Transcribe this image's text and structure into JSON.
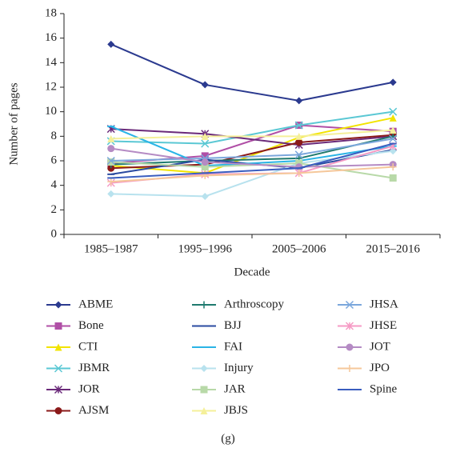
{
  "chart_data": {
    "type": "line",
    "caption": "(g)",
    "xlabel": "Decade",
    "ylabel": "Number of pages",
    "categories": [
      "1985–1987",
      "1995–1996",
      "2005–2006",
      "2015–2016"
    ],
    "ylim": [
      0,
      18
    ],
    "yticks": [
      0,
      2,
      4,
      6,
      8,
      10,
      12,
      14,
      16,
      18
    ],
    "series": [
      {
        "name": "ABME",
        "color": "#2b3a8f",
        "marker": "diamond",
        "values": [
          15.5,
          12.2,
          10.9,
          12.4
        ]
      },
      {
        "name": "Bone",
        "color": "#b04fa6",
        "marker": "square",
        "values": [
          5.8,
          6.4,
          8.9,
          8.4
        ]
      },
      {
        "name": "CTI",
        "color": "#f2e400",
        "marker": "triangle",
        "values": [
          5.6,
          5.0,
          7.9,
          9.5
        ]
      },
      {
        "name": "JBMR",
        "color": "#5bc8d4",
        "marker": "x",
        "values": [
          7.6,
          7.4,
          8.9,
          10.0
        ]
      },
      {
        "name": "JOR",
        "color": "#6b2a7a",
        "marker": "asterisk",
        "values": [
          8.6,
          8.2,
          7.3,
          8.0
        ]
      },
      {
        "name": "AJSM",
        "color": "#8b1a1a",
        "marker": "circle",
        "values": [
          5.4,
          5.7,
          7.5,
          8.1
        ]
      },
      {
        "name": "Arthroscopy",
        "color": "#1f7a6e",
        "marker": "plus",
        "values": [
          5.7,
          6.0,
          6.2,
          8.0
        ]
      },
      {
        "name": "BJJ",
        "color": "#2a4aa0",
        "marker": "dash",
        "values": [
          4.9,
          6.1,
          5.4,
          6.9
        ]
      },
      {
        "name": "FAI",
        "color": "#2ab4e6",
        "marker": "dash",
        "values": [
          8.8,
          5.6,
          6.0,
          7.2
        ]
      },
      {
        "name": "Injury",
        "color": "#b8e2ee",
        "marker": "diamond",
        "values": [
          3.3,
          3.1,
          5.8,
          6.8
        ]
      },
      {
        "name": "JAR",
        "color": "#b8d9a8",
        "marker": "square",
        "values": [
          5.9,
          5.5,
          5.8,
          4.6
        ]
      },
      {
        "name": "JBJS",
        "color": "#f5f09a",
        "marker": "triangle",
        "values": [
          7.8,
          8.0,
          8.0,
          8.5
        ]
      },
      {
        "name": "JHSA",
        "color": "#7ba7dc",
        "marker": "x",
        "values": [
          6.0,
          6.2,
          6.5,
          7.8
        ]
      },
      {
        "name": "JHSE",
        "color": "#f59ac4",
        "marker": "asterisk",
        "values": [
          4.2,
          4.9,
          5.0,
          7.2
        ]
      },
      {
        "name": "JOT",
        "color": "#b58bc4",
        "marker": "circle",
        "values": [
          7.0,
          5.9,
          5.5,
          5.7
        ]
      },
      {
        "name": "JPO",
        "color": "#f5c79a",
        "marker": "plus",
        "values": [
          4.3,
          4.8,
          5.0,
          5.5
        ]
      },
      {
        "name": "Spine",
        "color": "#3a5dbf",
        "marker": "dash",
        "values": [
          4.6,
          5.0,
          5.4,
          7.4
        ]
      }
    ]
  }
}
